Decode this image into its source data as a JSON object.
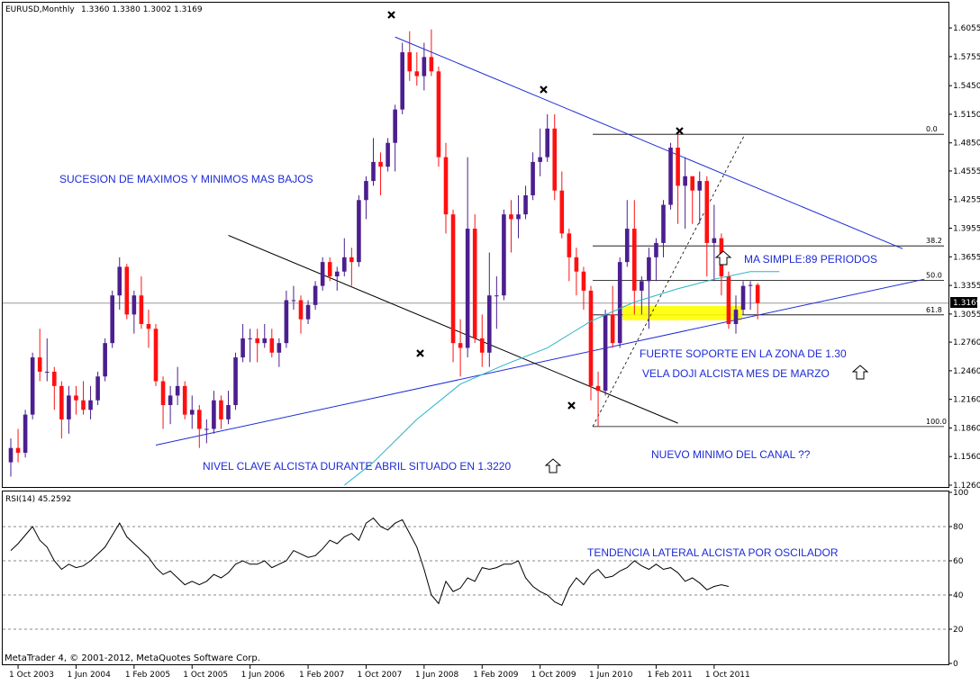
{
  "header": {
    "symbol": "EURUSD,Monthly",
    "ohlc": "1.3360 1.3380 1.3002 1.3169",
    "current_price": "1.3169",
    "rsi_label": "RSI(14) 45.2592",
    "copyright": "MetaTrader 4, © 2001-2012, MetaQuotes Software Corp."
  },
  "colors": {
    "bull": "#4b1f8f",
    "bear": "#ff1010",
    "trendline": "#1d2bd6",
    "channel_line": "#000000",
    "sma": "#29b6c8",
    "fib_zone": "#ffff00",
    "annotation": "#1d2bd6"
  },
  "annotations": {
    "maximos": "SUCESION DE MAXIMOS Y MINIMOS MAS BAJOS",
    "nivel_clave": "NIVEL CLAVE ALCISTA DURANTE ABRIL SITUADO EN 1.3220",
    "ma_simple": "MA SIMPLE:89 PERIODOS",
    "soporte": "FUERTE SOPORTE EN LA ZONA DE 1.30",
    "doji": "VELA DOJI ALCISTA MES DE MARZO",
    "nuevo_minimo": "NUEVO MINIMO DEL CANAL ??",
    "tendencia": "TENDENCIA LATERAL ALCISTA POR OSCILADOR"
  },
  "fib_levels": [
    "0.0",
    "38.2",
    "50.0",
    "61.8",
    "100.0"
  ],
  "chart_data": {
    "type": "candlestick",
    "price_axis": {
      "ylim": [
        1.126,
        1.6235
      ],
      "ticks": [
        "1.6055",
        "1.5755",
        "1.5450",
        "1.5150",
        "1.4850",
        "1.4555",
        "1.4255",
        "1.3955",
        "1.3655",
        "1.3355",
        "1.3055",
        "1.2760",
        "1.2460",
        "1.2160",
        "1.1860",
        "1.1560",
        "1.1260"
      ]
    },
    "x_ticks": [
      "1 Oct 2003",
      "1 Jun 2004",
      "1 Feb 2005",
      "1 Oct 2005",
      "1 Jun 2006",
      "1 Feb 2007",
      "1 Oct 2007",
      "1 Jun 2008",
      "1 Feb 2009",
      "1 Oct 2009",
      "1 Jun 2010",
      "1 Feb 2011",
      "1 Oct 2011"
    ],
    "candles": [
      {
        "d": "2003-09",
        "o": 1.15,
        "h": 1.175,
        "l": 1.135,
        "c": 1.165
      },
      {
        "d": "2003-10",
        "o": 1.165,
        "h": 1.185,
        "l": 1.15,
        "c": 1.16
      },
      {
        "d": "2003-11",
        "o": 1.16,
        "h": 1.205,
        "l": 1.155,
        "c": 1.2
      },
      {
        "d": "2003-12",
        "o": 1.2,
        "h": 1.265,
        "l": 1.195,
        "c": 1.26
      },
      {
        "d": "2004-01",
        "o": 1.26,
        "h": 1.29,
        "l": 1.235,
        "c": 1.245
      },
      {
        "d": "2004-02",
        "o": 1.245,
        "h": 1.28,
        "l": 1.235,
        "c": 1.245
      },
      {
        "d": "2004-03",
        "o": 1.245,
        "h": 1.25,
        "l": 1.205,
        "c": 1.23
      },
      {
        "d": "2004-04",
        "o": 1.23,
        "h": 1.235,
        "l": 1.175,
        "c": 1.195
      },
      {
        "d": "2004-05",
        "o": 1.195,
        "h": 1.23,
        "l": 1.18,
        "c": 1.22
      },
      {
        "d": "2004-06",
        "o": 1.22,
        "h": 1.23,
        "l": 1.2,
        "c": 1.215
      },
      {
        "d": "2004-07",
        "o": 1.215,
        "h": 1.235,
        "l": 1.2,
        "c": 1.205
      },
      {
        "d": "2004-08",
        "o": 1.205,
        "h": 1.23,
        "l": 1.195,
        "c": 1.215
      },
      {
        "d": "2004-09",
        "o": 1.215,
        "h": 1.245,
        "l": 1.21,
        "c": 1.24
      },
      {
        "d": "2004-10",
        "o": 1.24,
        "h": 1.28,
        "l": 1.235,
        "c": 1.275
      },
      {
        "d": "2004-11",
        "o": 1.275,
        "h": 1.33,
        "l": 1.27,
        "c": 1.325
      },
      {
        "d": "2004-12",
        "o": 1.325,
        "h": 1.365,
        "l": 1.31,
        "c": 1.355
      },
      {
        "d": "2005-01",
        "o": 1.355,
        "h": 1.358,
        "l": 1.3,
        "c": 1.305
      },
      {
        "d": "2005-02",
        "o": 1.305,
        "h": 1.33,
        "l": 1.285,
        "c": 1.325
      },
      {
        "d": "2005-03",
        "o": 1.325,
        "h": 1.345,
        "l": 1.29,
        "c": 1.295
      },
      {
        "d": "2005-04",
        "o": 1.295,
        "h": 1.31,
        "l": 1.27,
        "c": 1.29
      },
      {
        "d": "2005-05",
        "o": 1.29,
        "h": 1.295,
        "l": 1.23,
        "c": 1.235
      },
      {
        "d": "2005-06",
        "o": 1.235,
        "h": 1.24,
        "l": 1.185,
        "c": 1.21
      },
      {
        "d": "2005-07",
        "o": 1.21,
        "h": 1.23,
        "l": 1.19,
        "c": 1.22
      },
      {
        "d": "2005-08",
        "o": 1.22,
        "h": 1.25,
        "l": 1.21,
        "c": 1.23
      },
      {
        "d": "2005-09",
        "o": 1.23,
        "h": 1.235,
        "l": 1.195,
        "c": 1.2
      },
      {
        "d": "2005-10",
        "o": 1.2,
        "h": 1.22,
        "l": 1.185,
        "c": 1.205
      },
      {
        "d": "2005-11",
        "o": 1.205,
        "h": 1.21,
        "l": 1.165,
        "c": 1.185
      },
      {
        "d": "2005-12",
        "o": 1.185,
        "h": 1.195,
        "l": 1.17,
        "c": 1.185
      },
      {
        "d": "2006-01",
        "o": 1.185,
        "h": 1.225,
        "l": 1.18,
        "c": 1.215
      },
      {
        "d": "2006-02",
        "o": 1.215,
        "h": 1.22,
        "l": 1.185,
        "c": 1.195
      },
      {
        "d": "2006-03",
        "o": 1.195,
        "h": 1.225,
        "l": 1.19,
        "c": 1.21
      },
      {
        "d": "2006-04",
        "o": 1.21,
        "h": 1.265,
        "l": 1.205,
        "c": 1.26
      },
      {
        "d": "2006-05",
        "o": 1.26,
        "h": 1.295,
        "l": 1.255,
        "c": 1.28
      },
      {
        "d": "2006-06",
        "o": 1.28,
        "h": 1.29,
        "l": 1.255,
        "c": 1.28
      },
      {
        "d": "2006-07",
        "o": 1.28,
        "h": 1.29,
        "l": 1.255,
        "c": 1.275
      },
      {
        "d": "2006-08",
        "o": 1.275,
        "h": 1.295,
        "l": 1.27,
        "c": 1.28
      },
      {
        "d": "2006-09",
        "o": 1.28,
        "h": 1.29,
        "l": 1.26,
        "c": 1.265
      },
      {
        "d": "2006-10",
        "o": 1.265,
        "h": 1.28,
        "l": 1.25,
        "c": 1.275
      },
      {
        "d": "2006-11",
        "o": 1.275,
        "h": 1.33,
        "l": 1.27,
        "c": 1.32
      },
      {
        "d": "2006-12",
        "o": 1.32,
        "h": 1.335,
        "l": 1.31,
        "c": 1.32
      },
      {
        "d": "2007-01",
        "o": 1.32,
        "h": 1.325,
        "l": 1.285,
        "c": 1.3
      },
      {
        "d": "2007-02",
        "o": 1.3,
        "h": 1.32,
        "l": 1.295,
        "c": 1.315
      },
      {
        "d": "2007-03",
        "o": 1.315,
        "h": 1.34,
        "l": 1.31,
        "c": 1.335
      },
      {
        "d": "2007-04",
        "o": 1.335,
        "h": 1.365,
        "l": 1.33,
        "c": 1.36
      },
      {
        "d": "2007-05",
        "o": 1.36,
        "h": 1.365,
        "l": 1.34,
        "c": 1.345
      },
      {
        "d": "2007-06",
        "o": 1.345,
        "h": 1.355,
        "l": 1.33,
        "c": 1.35
      },
      {
        "d": "2007-07",
        "o": 1.35,
        "h": 1.385,
        "l": 1.345,
        "c": 1.365
      },
      {
        "d": "2007-08",
        "o": 1.365,
        "h": 1.375,
        "l": 1.335,
        "c": 1.36
      },
      {
        "d": "2007-09",
        "o": 1.36,
        "h": 1.43,
        "l": 1.355,
        "c": 1.425
      },
      {
        "d": "2007-10",
        "o": 1.425,
        "h": 1.45,
        "l": 1.405,
        "c": 1.445
      },
      {
        "d": "2007-11",
        "o": 1.445,
        "h": 1.49,
        "l": 1.44,
        "c": 1.465
      },
      {
        "d": "2007-12",
        "o": 1.465,
        "h": 1.475,
        "l": 1.43,
        "c": 1.46
      },
      {
        "d": "2008-01",
        "o": 1.46,
        "h": 1.49,
        "l": 1.455,
        "c": 1.485
      },
      {
        "d": "2008-02",
        "o": 1.485,
        "h": 1.525,
        "l": 1.455,
        "c": 1.52
      },
      {
        "d": "2008-03",
        "o": 1.52,
        "h": 1.59,
        "l": 1.515,
        "c": 1.58
      },
      {
        "d": "2008-04",
        "o": 1.58,
        "h": 1.602,
        "l": 1.55,
        "c": 1.56
      },
      {
        "d": "2008-05",
        "o": 1.56,
        "h": 1.58,
        "l": 1.545,
        "c": 1.555
      },
      {
        "d": "2008-06",
        "o": 1.555,
        "h": 1.59,
        "l": 1.54,
        "c": 1.575
      },
      {
        "d": "2008-07",
        "o": 1.575,
        "h": 1.604,
        "l": 1.555,
        "c": 1.56
      },
      {
        "d": "2008-08",
        "o": 1.56,
        "h": 1.565,
        "l": 1.46,
        "c": 1.47
      },
      {
        "d": "2008-09",
        "o": 1.47,
        "h": 1.485,
        "l": 1.39,
        "c": 1.41
      },
      {
        "d": "2008-10",
        "o": 1.41,
        "h": 1.415,
        "l": 1.255,
        "c": 1.275
      },
      {
        "d": "2008-11",
        "o": 1.275,
        "h": 1.3,
        "l": 1.24,
        "c": 1.27
      },
      {
        "d": "2008-12",
        "o": 1.27,
        "h": 1.47,
        "l": 1.26,
        "c": 1.395
      },
      {
        "d": "2009-01",
        "o": 1.395,
        "h": 1.41,
        "l": 1.275,
        "c": 1.28
      },
      {
        "d": "2009-02",
        "o": 1.28,
        "h": 1.305,
        "l": 1.25,
        "c": 1.265
      },
      {
        "d": "2009-03",
        "o": 1.265,
        "h": 1.37,
        "l": 1.25,
        "c": 1.325
      },
      {
        "d": "2009-04",
        "o": 1.325,
        "h": 1.345,
        "l": 1.29,
        "c": 1.325
      },
      {
        "d": "2009-05",
        "o": 1.325,
        "h": 1.415,
        "l": 1.32,
        "c": 1.41
      },
      {
        "d": "2009-06",
        "o": 1.41,
        "h": 1.425,
        "l": 1.37,
        "c": 1.405
      },
      {
        "d": "2009-07",
        "o": 1.405,
        "h": 1.43,
        "l": 1.385,
        "c": 1.41
      },
      {
        "d": "2009-08",
        "o": 1.41,
        "h": 1.44,
        "l": 1.405,
        "c": 1.43
      },
      {
        "d": "2009-09",
        "o": 1.43,
        "h": 1.475,
        "l": 1.425,
        "c": 1.465
      },
      {
        "d": "2009-10",
        "o": 1.465,
        "h": 1.5,
        "l": 1.45,
        "c": 1.47
      },
      {
        "d": "2009-11",
        "o": 1.47,
        "h": 1.515,
        "l": 1.465,
        "c": 1.5
      },
      {
        "d": "2009-12",
        "o": 1.5,
        "h": 1.515,
        "l": 1.425,
        "c": 1.435
      },
      {
        "d": "2010-01",
        "o": 1.435,
        "h": 1.455,
        "l": 1.385,
        "c": 1.39
      },
      {
        "d": "2010-02",
        "o": 1.39,
        "h": 1.395,
        "l": 1.34,
        "c": 1.365
      },
      {
        "d": "2010-03",
        "o": 1.365,
        "h": 1.375,
        "l": 1.325,
        "c": 1.35
      },
      {
        "d": "2010-04",
        "o": 1.35,
        "h": 1.355,
        "l": 1.31,
        "c": 1.33
      },
      {
        "d": "2010-05",
        "o": 1.33,
        "h": 1.335,
        "l": 1.215,
        "c": 1.23
      },
      {
        "d": "2010-06",
        "o": 1.23,
        "h": 1.245,
        "l": 1.188,
        "c": 1.225
      },
      {
        "d": "2010-07",
        "o": 1.225,
        "h": 1.31,
        "l": 1.22,
        "c": 1.305
      },
      {
        "d": "2010-08",
        "o": 1.305,
        "h": 1.335,
        "l": 1.27,
        "c": 1.275
      },
      {
        "d": "2010-09",
        "o": 1.275,
        "h": 1.365,
        "l": 1.27,
        "c": 1.36
      },
      {
        "d": "2010-10",
        "o": 1.36,
        "h": 1.425,
        "l": 1.355,
        "c": 1.395
      },
      {
        "d": "2010-11",
        "o": 1.395,
        "h": 1.425,
        "l": 1.305,
        "c": 1.33
      },
      {
        "d": "2010-12",
        "o": 1.33,
        "h": 1.345,
        "l": 1.305,
        "c": 1.34
      },
      {
        "d": "2011-01",
        "o": 1.34,
        "h": 1.375,
        "l": 1.29,
        "c": 1.365
      },
      {
        "d": "2011-02",
        "o": 1.365,
        "h": 1.385,
        "l": 1.34,
        "c": 1.38
      },
      {
        "d": "2011-03",
        "o": 1.38,
        "h": 1.425,
        "l": 1.365,
        "c": 1.42
      },
      {
        "d": "2011-04",
        "o": 1.42,
        "h": 1.485,
        "l": 1.415,
        "c": 1.48
      },
      {
        "d": "2011-05",
        "o": 1.48,
        "h": 1.495,
        "l": 1.4,
        "c": 1.44
      },
      {
        "d": "2011-06",
        "o": 1.44,
        "h": 1.47,
        "l": 1.395,
        "c": 1.45
      },
      {
        "d": "2011-07",
        "o": 1.45,
        "h": 1.45,
        "l": 1.4,
        "c": 1.435
      },
      {
        "d": "2011-08",
        "o": 1.435,
        "h": 1.455,
        "l": 1.4,
        "c": 1.445
      },
      {
        "d": "2011-09",
        "o": 1.445,
        "h": 1.45,
        "l": 1.345,
        "c": 1.38
      },
      {
        "d": "2011-10",
        "o": 1.38,
        "h": 1.42,
        "l": 1.34,
        "c": 1.385
      },
      {
        "d": "2011-11",
        "o": 1.385,
        "h": 1.39,
        "l": 1.325,
        "c": 1.345
      },
      {
        "d": "2011-12",
        "o": 1.345,
        "h": 1.35,
        "l": 1.29,
        "c": 1.295
      },
      {
        "d": "2012-01",
        "o": 1.295,
        "h": 1.325,
        "l": 1.285,
        "c": 1.31
      },
      {
        "d": "2012-02",
        "o": 1.31,
        "h": 1.34,
        "l": 1.305,
        "c": 1.335
      },
      {
        "d": "2012-03",
        "o": 1.335,
        "h": 1.34,
        "l": 1.31,
        "c": 1.336
      },
      {
        "d": "2012-04",
        "o": 1.336,
        "h": 1.338,
        "l": 1.3,
        "c": 1.317
      }
    ],
    "rsi": {
      "ylim": [
        0,
        100
      ],
      "ticks": [
        "100",
        "80",
        "60",
        "40",
        "20",
        "0"
      ],
      "values": [
        66,
        70,
        75,
        80,
        72,
        68,
        60,
        55,
        58,
        56,
        57,
        60,
        64,
        68,
        75,
        82,
        74,
        70,
        66,
        62,
        56,
        52,
        54,
        50,
        46,
        48,
        46,
        48,
        52,
        50,
        53,
        58,
        60,
        58,
        58,
        60,
        56,
        58,
        60,
        66,
        64,
        62,
        63,
        67,
        72,
        70,
        74,
        76,
        72,
        82,
        85,
        80,
        78,
        82,
        84,
        76,
        68,
        55,
        40,
        35,
        48,
        42,
        44,
        50,
        48,
        56,
        55,
        56,
        58,
        58,
        60,
        50,
        45,
        42,
        40,
        36,
        34,
        44,
        50,
        46,
        52,
        55,
        50,
        51,
        54,
        56,
        60,
        57,
        55,
        58,
        55,
        56,
        53,
        48,
        50,
        47,
        43,
        45,
        46,
        45
      ]
    }
  }
}
